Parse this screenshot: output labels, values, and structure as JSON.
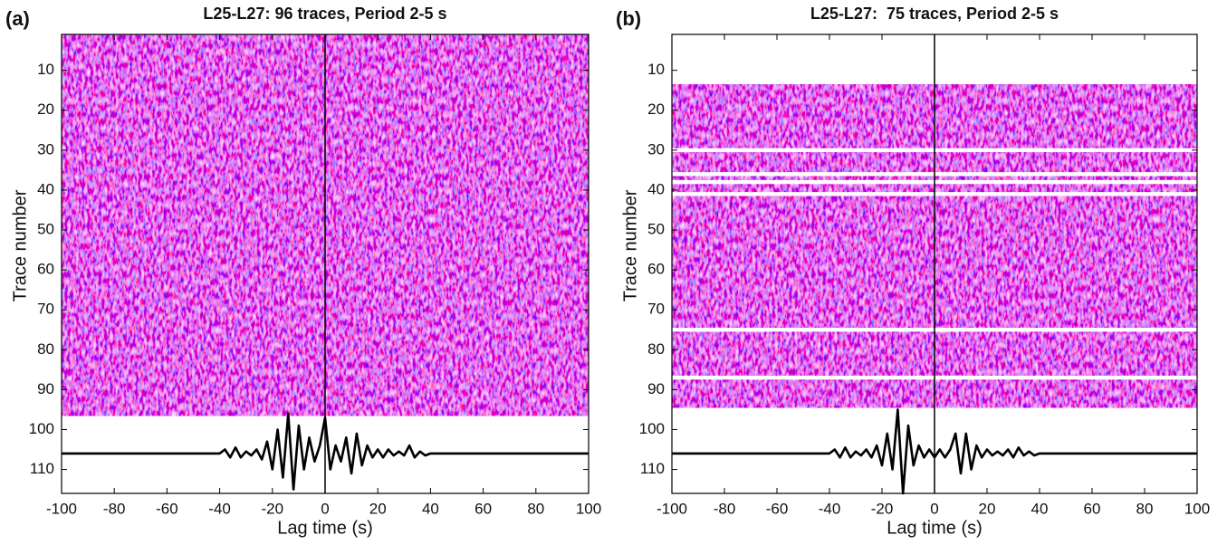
{
  "chart_data": [
    {
      "type": "line",
      "panel_label": "(a)",
      "title": "L25-L27: 96 traces, Period 2-5 s",
      "xlabel": "Lag time (s)",
      "ylabel": "Trace number",
      "xlim": [
        -100,
        100
      ],
      "ylim": [
        116,
        1
      ],
      "xticks": [
        -100,
        -80,
        -60,
        -40,
        -20,
        0,
        20,
        40,
        60,
        80,
        100
      ],
      "yticks": [
        10,
        20,
        30,
        40,
        50,
        60,
        70,
        80,
        90,
        100,
        110
      ],
      "image_traces": [
        1,
        96
      ],
      "series": [
        {
          "color": "#000000",
          "x": [
            -100,
            -80,
            -60,
            -40,
            -38,
            -36,
            -34,
            -32,
            -30,
            -28,
            -26,
            -24,
            -22,
            -20,
            -18,
            -16,
            -14,
            -12,
            -10,
            -8,
            -6,
            -4,
            -2,
            0,
            2,
            4,
            6,
            8,
            10,
            12,
            14,
            16,
            18,
            20,
            22,
            24,
            26,
            28,
            30,
            32,
            34,
            36,
            38,
            40,
            60,
            80,
            100
          ],
          "values": [
            106,
            106,
            106,
            106,
            105,
            107,
            104.5,
            107,
            105.5,
            106.5,
            105,
            107.5,
            103,
            110,
            100,
            112,
            96,
            115,
            99,
            110,
            102,
            108,
            104,
            97,
            110,
            104,
            108,
            102,
            111,
            101,
            109,
            104,
            107,
            105,
            107,
            105,
            106.5,
            105.5,
            106.5,
            104,
            107,
            105.5,
            106.5,
            106,
            106,
            106,
            106
          ]
        }
      ]
    },
    {
      "type": "line",
      "panel_label": "(b)",
      "title": "L25-L27:  75 traces, Period 2-5 s",
      "xlabel": "Lag time (s)",
      "ylabel": "Trace number",
      "xlim": [
        -100,
        100
      ],
      "ylim": [
        116,
        1
      ],
      "xticks": [
        -100,
        -80,
        -60,
        -40,
        -20,
        0,
        20,
        40,
        60,
        80,
        100
      ],
      "yticks": [
        10,
        20,
        30,
        40,
        50,
        60,
        70,
        80,
        90,
        100,
        110
      ],
      "image_traces": [
        14,
        94
      ],
      "blank_traces": [
        30,
        36,
        38,
        41,
        75,
        87
      ],
      "series": [
        {
          "color": "#000000",
          "x": [
            -100,
            -80,
            -60,
            -40,
            -38,
            -36,
            -34,
            -32,
            -30,
            -28,
            -26,
            -24,
            -22,
            -20,
            -18,
            -16,
            -14,
            -12,
            -10,
            -8,
            -6,
            -4,
            -2,
            0,
            2,
            4,
            6,
            8,
            10,
            12,
            14,
            16,
            18,
            20,
            22,
            24,
            26,
            28,
            30,
            32,
            34,
            36,
            38,
            40,
            60,
            80,
            100
          ],
          "values": [
            106,
            106,
            106,
            106,
            105,
            107,
            104.5,
            107,
            105.5,
            106.5,
            105,
            107,
            104,
            109,
            101,
            110,
            95,
            116,
            99,
            109,
            104,
            107,
            105,
            107,
            105,
            107,
            105,
            101,
            111,
            101,
            110,
            104,
            107,
            105,
            106.5,
            105.5,
            106.5,
            105,
            107,
            104.5,
            106.5,
            105.5,
            106.5,
            106,
            106,
            106,
            106
          ]
        }
      ]
    }
  ]
}
